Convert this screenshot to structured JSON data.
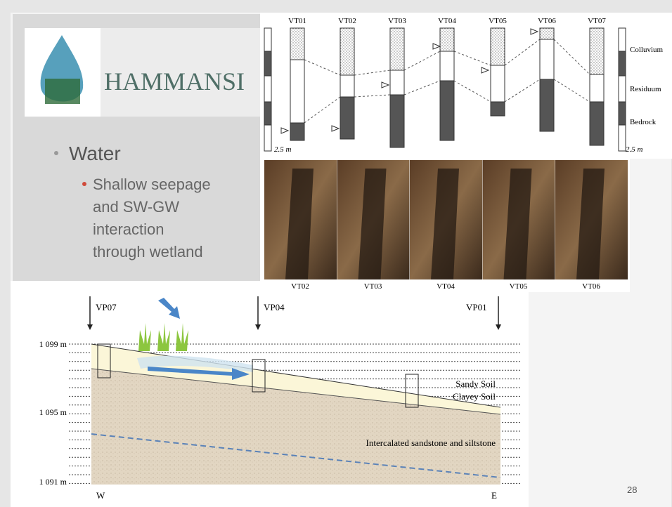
{
  "slide": {
    "title": "HAMMANSI",
    "bullets": [
      {
        "text": "Water",
        "sub": [
          "Shallow seepage and SW-GW interaction through wetland"
        ]
      }
    ],
    "page_number": "28"
  },
  "trench_profiles": {
    "columns": [
      "VT01",
      "VT02",
      "VT03",
      "VT04",
      "VT05",
      "VT06",
      "VT07"
    ],
    "legend": [
      "Colluvium",
      "Residuum",
      "Bedrock"
    ],
    "scale_left": "2.5 m",
    "scale_right": "2.5 m"
  },
  "photos": {
    "captions": [
      "VT02",
      "VT03",
      "VT04",
      "VT05",
      "VT06"
    ]
  },
  "cross_section": {
    "profiles": [
      "VP07",
      "VP04",
      "VP01"
    ],
    "elevations": [
      "1 099 m",
      "1 095 m",
      "1 091 m"
    ],
    "layers": [
      "Sandy Soil",
      "Clayey Soil",
      "Intercalated sandstone and siltstone"
    ],
    "west": "W",
    "east": "E"
  }
}
